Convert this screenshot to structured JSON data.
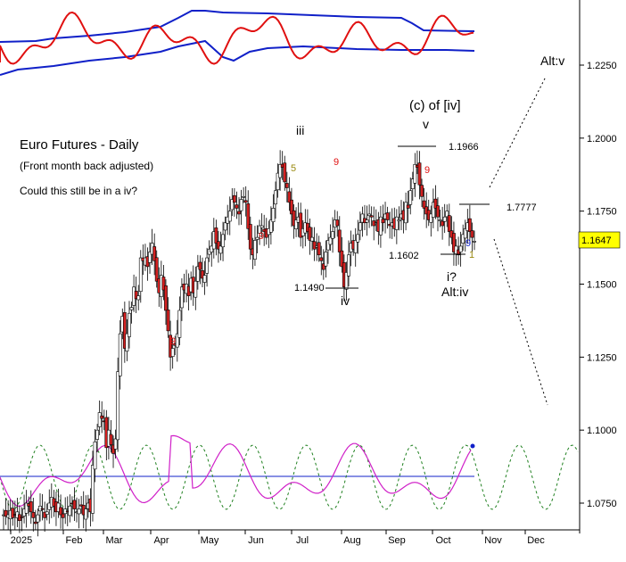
{
  "chart_data": {
    "type": "candlestick",
    "title": "Euro Futures - Daily",
    "subtitle": "(Front month back adjusted)",
    "question": "Could this still be in a iv?",
    "y_ticks": [
      "1.2250",
      "1.2000",
      "1.1750",
      "1.1500",
      "1.1250",
      "1.1000",
      "1.0750"
    ],
    "ylim": [
      1.0695,
      1.2545
    ],
    "x_ticks": [
      "2025",
      "Feb",
      "Mar",
      "Apr",
      "May",
      "Jun",
      "Jul",
      "Aug",
      "Sep",
      "Oct",
      "Nov",
      "Dec"
    ],
    "last_price": "1.1647",
    "ohlc_close": [
      1.071,
      1.0705,
      1.071,
      1.0725,
      1.07,
      1.071,
      1.072,
      1.069,
      1.07,
      1.073,
      1.075,
      1.074,
      1.072,
      1.07,
      1.068,
      1.071,
      1.074,
      1.073,
      1.07,
      1.072,
      1.075,
      1.077,
      1.074,
      1.072,
      1.075,
      1.071,
      1.07,
      1.073,
      1.072,
      1.074,
      1.075,
      1.073,
      1.072,
      1.073,
      1.074,
      1.071,
      1.073,
      1.075,
      1.072,
      1.088,
      1.096,
      1.1,
      1.106,
      1.104,
      1.103,
      1.094,
      1.1,
      1.095,
      1.092,
      1.097,
      1.12,
      1.133,
      1.139,
      1.128,
      1.133,
      1.14,
      1.142,
      1.149,
      1.145,
      1.146,
      1.159,
      1.158,
      1.159,
      1.156,
      1.161,
      1.164,
      1.158,
      1.151,
      1.147,
      1.153,
      1.148,
      1.141,
      1.134,
      1.125,
      1.128,
      1.129,
      1.133,
      1.141,
      1.149,
      1.148,
      1.15,
      1.146,
      1.152,
      1.147,
      1.151,
      1.156,
      1.155,
      1.152,
      1.153,
      1.159,
      1.162,
      1.163,
      1.168,
      1.164,
      1.162,
      1.163,
      1.167,
      1.171,
      1.173,
      1.175,
      1.179,
      1.178,
      1.176,
      1.174,
      1.179,
      1.18,
      1.178,
      1.169,
      1.162,
      1.16,
      1.165,
      1.166,
      1.17,
      1.17,
      1.168,
      1.166,
      1.169,
      1.172,
      1.176,
      1.182,
      1.188,
      1.191,
      1.19,
      1.185,
      1.183,
      1.178,
      1.174,
      1.17,
      1.172,
      1.173,
      1.166,
      1.169,
      1.171,
      1.168,
      1.165,
      1.166,
      1.162,
      1.163,
      1.16,
      1.158,
      1.155,
      1.161,
      1.165,
      1.166,
      1.168,
      1.172,
      1.17,
      1.161,
      1.156,
      1.149,
      1.154,
      1.16,
      1.164,
      1.162,
      1.165,
      1.167,
      1.171,
      1.174,
      1.171,
      1.172,
      1.174,
      1.173,
      1.17,
      1.171,
      1.168,
      1.173,
      1.171,
      1.174,
      1.172,
      1.17,
      1.171,
      1.169,
      1.173,
      1.172,
      1.174,
      1.172,
      1.178,
      1.176,
      1.182,
      1.186,
      1.191,
      1.19,
      1.184,
      1.18,
      1.176,
      1.174,
      1.172,
      1.174,
      1.178,
      1.176,
      1.173,
      1.172,
      1.17,
      1.173,
      1.175,
      1.168,
      1.166,
      1.161,
      1.163,
      1.16,
      1.163,
      1.167,
      1.169,
      1.171,
      1.168,
      1.166,
      1.1647
    ],
    "annotations": [
      {
        "text": "iii"
      },
      {
        "text": "iv"
      },
      {
        "text": "(c) of [iv]"
      },
      {
        "text": "v"
      },
      {
        "text": "1.1966"
      },
      {
        "text": "1.1490"
      },
      {
        "text": "1.1602"
      },
      {
        "text": "i?"
      },
      {
        "text": "Alt:iv"
      },
      {
        "text": "Alt:v"
      },
      {
        "text": "1.7777"
      }
    ],
    "count_labels_red": [
      "9",
      "9",
      "9",
      "9"
    ],
    "count_labels_olive": [
      "5",
      "1"
    ],
    "count_labels_blue": [
      "9"
    ],
    "colors": {
      "up_candle": "#ffffff",
      "down_candle": "#d42020",
      "red_oscillator": "#e01010",
      "blue_band": "#1020c8",
      "magenta": "#d020c8",
      "green_cycle": "#208020",
      "price_marker": "#ffff00"
    }
  }
}
